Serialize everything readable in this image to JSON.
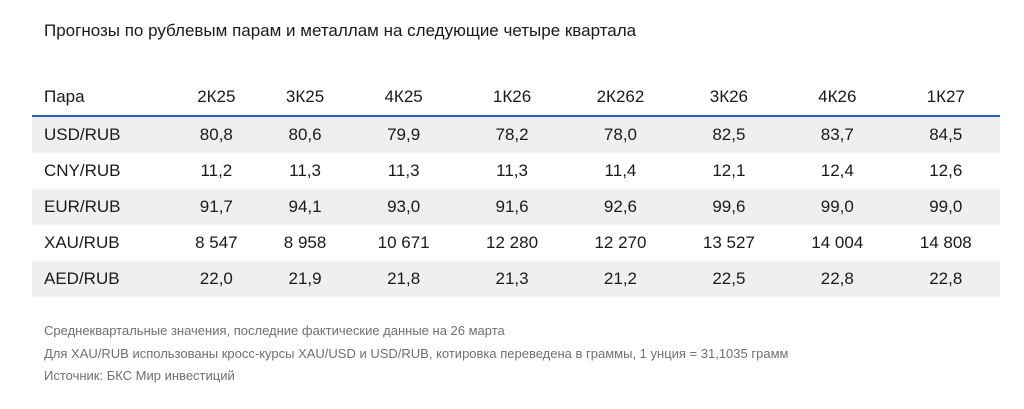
{
  "title": "Прогнозы по рублевым парам и металлам на следующие четыре квартала",
  "table": {
    "header": [
      "Пара",
      "2К25",
      "3К25",
      "4К25",
      "1К26",
      "2К262",
      "3К26",
      "4К26",
      "1К27"
    ],
    "rows": [
      [
        "USD/RUB",
        "80,8",
        "80,6",
        "79,9",
        "78,2",
        "78,0",
        "82,5",
        "83,7",
        "84,5"
      ],
      [
        "CNY/RUB",
        "11,2",
        "11,3",
        "11,3",
        "11,3",
        "11,4",
        "12,1",
        "12,4",
        "12,6"
      ],
      [
        "EUR/RUB",
        "91,7",
        "94,1",
        "93,0",
        "91,6",
        "92,6",
        "99,6",
        "99,0",
        "99,0"
      ],
      [
        "XAU/RUB",
        "8 547",
        "8 958",
        "10 671",
        "12 280",
        "12 270",
        "13 527",
        "14 004",
        "14 808"
      ],
      [
        "AED/RUB",
        "22,0",
        "21,9",
        "21,8",
        "21,3",
        "21,2",
        "22,5",
        "22,8",
        "22,8"
      ]
    ]
  },
  "notes": [
    "Среднеквартальные значения, последние фактические данные на 26 марта",
    "Для XAU/RUB использованы кросс-курсы XAU/USD и USD/RUB, котировка переведена в граммы, 1 унция = 31,1035 грамм",
    "Источник: БКС Мир инвестиций"
  ],
  "colors": {
    "header_rule": "#2a5bd7",
    "shaded_row": "#efefef",
    "note_text": "#707070"
  }
}
